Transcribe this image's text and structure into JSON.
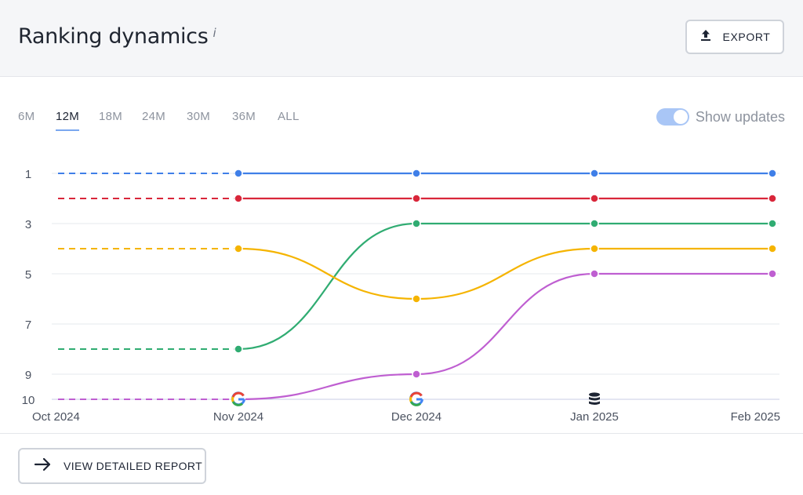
{
  "header": {
    "title": "Ranking dynamics",
    "info_mark": "i",
    "export_label": "EXPORT",
    "export_icon": "upload-icon"
  },
  "period_tabs": [
    {
      "label": "6M",
      "active": false
    },
    {
      "label": "12M",
      "active": true
    },
    {
      "label": "18M",
      "active": false
    },
    {
      "label": "24M",
      "active": false
    },
    {
      "label": "30M",
      "active": false
    },
    {
      "label": "36M",
      "active": false
    },
    {
      "label": "ALL",
      "active": false
    }
  ],
  "show_updates": {
    "label": "Show updates",
    "enabled": true
  },
  "footer": {
    "report_label": "VIEW DETAILED REPORT",
    "report_icon": "arrow-right-icon"
  },
  "chart_data": {
    "type": "line",
    "x": [
      "Oct 2024",
      "Nov 2024",
      "Dec 2024",
      "Jan 2025",
      "Feb 2025"
    ],
    "y_ticks": [
      1,
      3,
      5,
      7,
      9,
      10
    ],
    "y_reversed": true,
    "ylim": [
      1,
      10
    ],
    "dashed_until_index": 1,
    "series": [
      {
        "color": "#3f7fe8",
        "values": [
          1,
          1,
          1,
          1,
          1
        ]
      },
      {
        "color": "#d9263a",
        "values": [
          2,
          2,
          2,
          2,
          2
        ]
      },
      {
        "color": "#30ac72",
        "values": [
          8,
          8,
          3,
          3,
          3
        ]
      },
      {
        "color": "#f5b400",
        "values": [
          4,
          4,
          6,
          4,
          4
        ]
      },
      {
        "color": "#bf5fd1",
        "values": [
          10,
          10,
          9,
          5,
          5
        ]
      }
    ],
    "update_markers": [
      {
        "x": "Nov 2024",
        "icon": "google-icon"
      },
      {
        "x": "Dec 2024",
        "icon": "google-icon"
      },
      {
        "x": "Jan 2025",
        "icon": "database-icon"
      }
    ],
    "grid": true
  }
}
